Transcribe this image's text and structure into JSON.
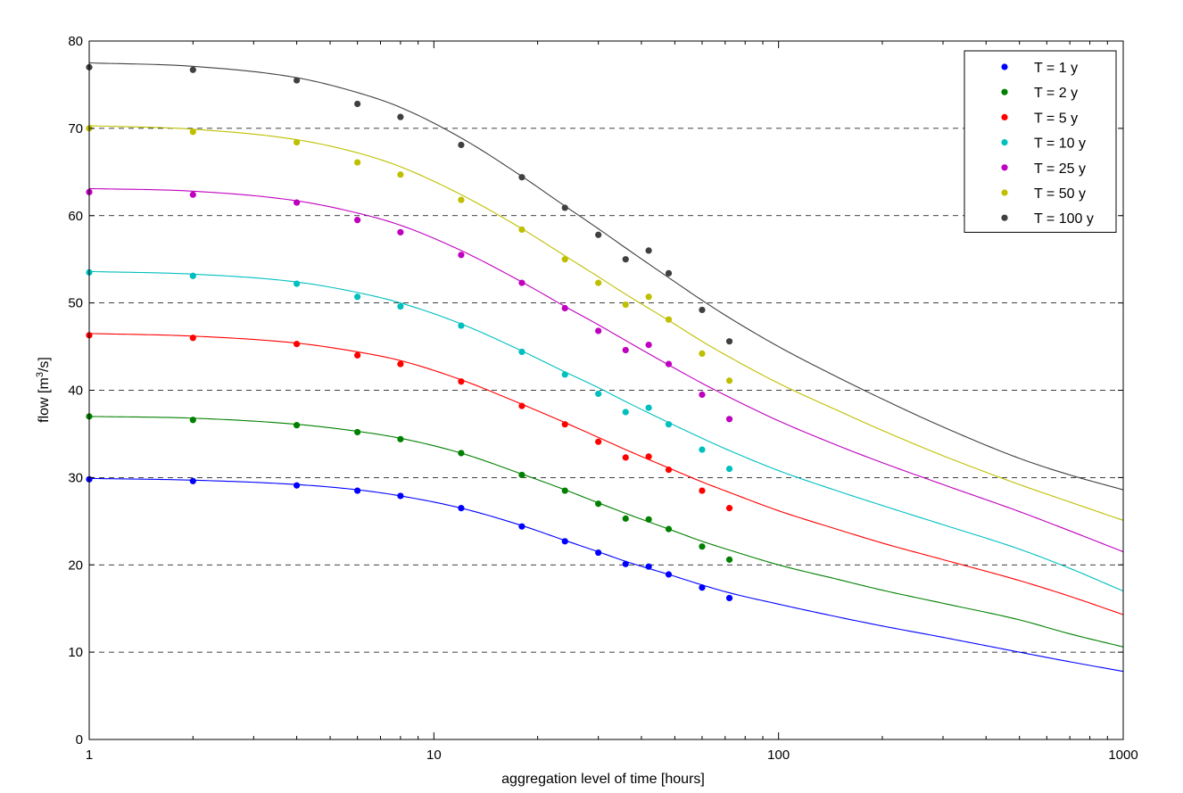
{
  "chart_data": {
    "type": "line",
    "title": "",
    "xlabel": "aggregation level of time [hours]",
    "ylabel": "flow [m3/s]",
    "ylabel_parts": {
      "pre": "flow [m",
      "sup": "3",
      "post": "/s]"
    },
    "x_scale": "log",
    "xlim": [
      1,
      1000
    ],
    "ylim": [
      0,
      80
    ],
    "x_ticks": [
      1,
      10,
      100,
      1000
    ],
    "y_ticks": [
      0,
      10,
      20,
      30,
      40,
      50,
      60,
      70,
      80
    ],
    "grid": "horizontal dashed",
    "legend_position": "top-right",
    "observation_x": [
      1,
      2,
      4,
      6,
      8,
      12,
      18,
      24,
      30,
      36,
      42,
      48,
      60,
      72
    ],
    "series": [
      {
        "name": "T = 1 y",
        "color": "#0000ff",
        "points": [
          29.8,
          29.6,
          29.1,
          28.5,
          27.9,
          26.5,
          24.4,
          22.7,
          21.4,
          20.1,
          19.8,
          18.9,
          17.4,
          16.2
        ],
        "fit": [
          [
            1,
            29.9
          ],
          [
            2,
            29.7
          ],
          [
            4,
            29.2
          ],
          [
            6,
            28.6
          ],
          [
            8,
            27.9
          ],
          [
            12,
            26.5
          ],
          [
            18,
            24.5
          ],
          [
            24,
            22.8
          ],
          [
            30,
            21.5
          ],
          [
            36,
            20.4
          ],
          [
            48,
            18.9
          ],
          [
            60,
            17.7
          ],
          [
            72,
            16.8
          ],
          [
            100,
            15.5
          ],
          [
            150,
            14.0
          ],
          [
            200,
            13.0
          ],
          [
            300,
            11.7
          ],
          [
            500,
            10.0
          ],
          [
            700,
            8.9
          ],
          [
            1000,
            7.8
          ]
        ]
      },
      {
        "name": "T = 2 y",
        "color": "#008000",
        "points": [
          37.0,
          36.6,
          36.0,
          35.2,
          34.4,
          32.8,
          30.3,
          28.5,
          27.0,
          25.3,
          25.2,
          24.1,
          22.1,
          20.6
        ],
        "fit": [
          [
            1,
            37.0
          ],
          [
            2,
            36.8
          ],
          [
            4,
            36.1
          ],
          [
            6,
            35.3
          ],
          [
            8,
            34.5
          ],
          [
            12,
            32.8
          ],
          [
            18,
            30.4
          ],
          [
            24,
            28.6
          ],
          [
            30,
            27.1
          ],
          [
            36,
            25.9
          ],
          [
            48,
            24.1
          ],
          [
            60,
            22.7
          ],
          [
            72,
            21.7
          ],
          [
            100,
            20.0
          ],
          [
            150,
            18.3
          ],
          [
            200,
            17.1
          ],
          [
            300,
            15.6
          ],
          [
            500,
            13.7
          ],
          [
            700,
            12.1
          ],
          [
            1000,
            10.6
          ]
        ]
      },
      {
        "name": "T = 5 y",
        "color": "#ff0000",
        "points": [
          46.3,
          46.0,
          45.3,
          44.0,
          43.0,
          41.0,
          38.2,
          36.1,
          34.1,
          32.3,
          32.4,
          30.9,
          28.5,
          26.5
        ],
        "fit": [
          [
            1,
            46.5
          ],
          [
            2,
            46.2
          ],
          [
            4,
            45.4
          ],
          [
            6,
            44.4
          ],
          [
            8,
            43.4
          ],
          [
            12,
            41.2
          ],
          [
            18,
            38.4
          ],
          [
            24,
            36.3
          ],
          [
            30,
            34.6
          ],
          [
            36,
            33.2
          ],
          [
            48,
            31.1
          ],
          [
            60,
            29.5
          ],
          [
            72,
            28.3
          ],
          [
            100,
            26.2
          ],
          [
            150,
            24.0
          ],
          [
            200,
            22.5
          ],
          [
            300,
            20.6
          ],
          [
            500,
            18.2
          ],
          [
            700,
            16.4
          ],
          [
            1000,
            14.3
          ]
        ]
      },
      {
        "name": "T = 10 y",
        "color": "#00bfbf",
        "points": [
          53.5,
          53.1,
          52.2,
          50.7,
          49.6,
          47.4,
          44.4,
          41.8,
          39.6,
          37.5,
          38.0,
          36.1,
          33.2,
          31.0
        ],
        "fit": [
          [
            1,
            53.6
          ],
          [
            2,
            53.3
          ],
          [
            4,
            52.4
          ],
          [
            6,
            51.2
          ],
          [
            8,
            50.0
          ],
          [
            12,
            47.6
          ],
          [
            18,
            44.5
          ],
          [
            24,
            42.1
          ],
          [
            30,
            40.3
          ],
          [
            36,
            38.7
          ],
          [
            48,
            36.3
          ],
          [
            60,
            34.5
          ],
          [
            72,
            33.1
          ],
          [
            100,
            30.8
          ],
          [
            150,
            28.4
          ],
          [
            200,
            26.8
          ],
          [
            300,
            24.6
          ],
          [
            500,
            21.8
          ],
          [
            700,
            19.6
          ],
          [
            1000,
            17.0
          ]
        ]
      },
      {
        "name": "T = 25 y",
        "color": "#bf00bf",
        "points": [
          62.7,
          62.4,
          61.5,
          59.5,
          58.1,
          55.5,
          52.3,
          49.4,
          46.8,
          44.6,
          45.2,
          43.0,
          39.5,
          36.7
        ],
        "fit": [
          [
            1,
            63.1
          ],
          [
            2,
            62.8
          ],
          [
            4,
            61.7
          ],
          [
            6,
            60.3
          ],
          [
            8,
            58.9
          ],
          [
            12,
            56.0
          ],
          [
            18,
            52.4
          ],
          [
            24,
            49.6
          ],
          [
            30,
            47.5
          ],
          [
            36,
            45.7
          ],
          [
            48,
            42.9
          ],
          [
            60,
            40.8
          ],
          [
            72,
            39.2
          ],
          [
            100,
            36.5
          ],
          [
            150,
            33.6
          ],
          [
            200,
            31.7
          ],
          [
            300,
            29.2
          ],
          [
            500,
            26.1
          ],
          [
            700,
            23.9
          ],
          [
            1000,
            21.5
          ]
        ]
      },
      {
        "name": "T = 50 y",
        "color": "#bfbf00",
        "points": [
          70.0,
          69.6,
          68.4,
          66.1,
          64.7,
          61.8,
          58.4,
          55.0,
          52.3,
          49.8,
          50.7,
          48.1,
          44.2,
          41.1
        ],
        "fit": [
          [
            1,
            70.3
          ],
          [
            2,
            69.9
          ],
          [
            4,
            68.7
          ],
          [
            6,
            67.2
          ],
          [
            8,
            65.6
          ],
          [
            12,
            62.4
          ],
          [
            18,
            58.5
          ],
          [
            24,
            55.4
          ],
          [
            30,
            53.0
          ],
          [
            36,
            51.0
          ],
          [
            48,
            48.0
          ],
          [
            60,
            45.6
          ],
          [
            72,
            43.8
          ],
          [
            100,
            40.8
          ],
          [
            150,
            37.6
          ],
          [
            200,
            35.4
          ],
          [
            300,
            32.5
          ],
          [
            500,
            29.2
          ],
          [
            700,
            27.2
          ],
          [
            1000,
            25.1
          ]
        ]
      },
      {
        "name": "T = 100 y",
        "color": "#404040",
        "points": [
          77.0,
          76.7,
          75.5,
          72.8,
          71.3,
          68.1,
          64.4,
          60.9,
          57.8,
          55.0,
          56.0,
          53.4,
          49.2,
          45.6
        ],
        "fit": [
          [
            1,
            77.5
          ],
          [
            2,
            77.1
          ],
          [
            4,
            75.8
          ],
          [
            6,
            74.1
          ],
          [
            8,
            72.4
          ],
          [
            12,
            68.9
          ],
          [
            18,
            64.5
          ],
          [
            24,
            61.1
          ],
          [
            30,
            58.5
          ],
          [
            36,
            56.3
          ],
          [
            48,
            52.9
          ],
          [
            60,
            50.3
          ],
          [
            72,
            48.3
          ],
          [
            100,
            45.0
          ],
          [
            150,
            41.4
          ],
          [
            200,
            39.0
          ],
          [
            300,
            35.8
          ],
          [
            500,
            32.2
          ],
          [
            700,
            30.3
          ],
          [
            1000,
            28.6
          ]
        ]
      }
    ]
  }
}
